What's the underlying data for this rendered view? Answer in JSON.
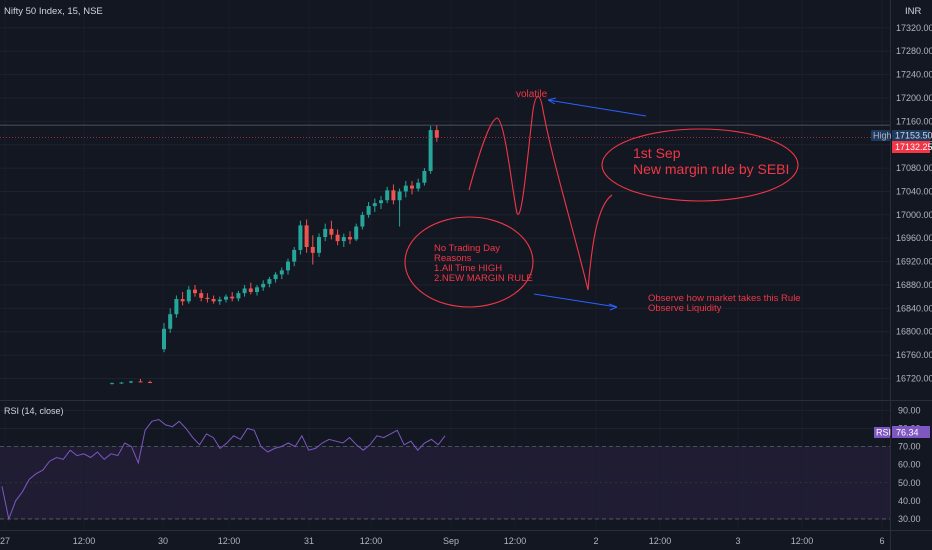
{
  "header": {
    "title": "Nifty 50 Index, 15, NSE",
    "currency": "INR"
  },
  "colors": {
    "up": "#26a69a",
    "down": "#ef5350",
    "annotation": "#f23645",
    "arrow": "#2962ff",
    "rsi": "#7e57c2",
    "high_tag": "#1e3a5f",
    "last_tag": "#f23645"
  },
  "chart_data": {
    "type": "candlestick",
    "price_ylim": [
      16690,
      17330
    ],
    "price_ticks": [
      "17320.00",
      "17280.00",
      "17240.00",
      "17200.00",
      "17160.00",
      "17120.00",
      "17080.00",
      "17040.00",
      "17000.00",
      "16960.00",
      "16920.00",
      "16880.00",
      "16840.00",
      "16800.00",
      "16760.00",
      "16720.00"
    ],
    "high_label": "High",
    "high_value": "17153.50",
    "last_value": "17132.25",
    "high": 17153.5,
    "last": 17132.25,
    "candles": [
      [
        16711,
        16713,
        16710,
        16712
      ],
      [
        16712,
        16714,
        16711,
        16713
      ],
      [
        16713,
        16716,
        16712,
        16715
      ],
      [
        16715,
        16719,
        16713,
        16714
      ],
      [
        16714,
        16716,
        16712,
        16713
      ],
      [
        16770,
        16815,
        16765,
        16805
      ],
      [
        16805,
        16840,
        16798,
        16830
      ],
      [
        16830,
        16862,
        16824,
        16856
      ],
      [
        16856,
        16868,
        16845,
        16852
      ],
      [
        16852,
        16878,
        16848,
        16872
      ],
      [
        16872,
        16880,
        16860,
        16866
      ],
      [
        16866,
        16872,
        16852,
        16858
      ],
      [
        16858,
        16866,
        16850,
        16856
      ],
      [
        16856,
        16862,
        16848,
        16852
      ],
      [
        16852,
        16860,
        16846,
        16855
      ],
      [
        16855,
        16864,
        16850,
        16860
      ],
      [
        16860,
        16868,
        16852,
        16857
      ],
      [
        16857,
        16870,
        16852,
        16866
      ],
      [
        16866,
        16880,
        16860,
        16874
      ],
      [
        16874,
        16884,
        16864,
        16868
      ],
      [
        16868,
        16880,
        16862,
        16876
      ],
      [
        16876,
        16888,
        16870,
        16882
      ],
      [
        16882,
        16894,
        16876,
        16890
      ],
      [
        16890,
        16902,
        16884,
        16898
      ],
      [
        16898,
        16910,
        16890,
        16905
      ],
      [
        16905,
        16925,
        16898,
        16920
      ],
      [
        16920,
        16945,
        16912,
        16940
      ],
      [
        16940,
        16990,
        16932,
        16982
      ],
      [
        16982,
        16992,
        16935,
        16945
      ],
      [
        16945,
        16965,
        16915,
        16935
      ],
      [
        16935,
        16968,
        16928,
        16962
      ],
      [
        16962,
        16985,
        16955,
        16976
      ],
      [
        16976,
        16990,
        16958,
        16966
      ],
      [
        16966,
        16975,
        16948,
        16955
      ],
      [
        16955,
        16968,
        16945,
        16962
      ],
      [
        16962,
        16972,
        16950,
        16958
      ],
      [
        16958,
        16985,
        16955,
        16980
      ],
      [
        16980,
        17005,
        16975,
        17000
      ],
      [
        17000,
        17022,
        16995,
        17015
      ],
      [
        17015,
        17028,
        17005,
        17020
      ],
      [
        17020,
        17032,
        17010,
        17025
      ],
      [
        17025,
        17048,
        17020,
        17042
      ],
      [
        17042,
        17052,
        17018,
        17025
      ],
      [
        17025,
        17045,
        16980,
        17040
      ],
      [
        17040,
        17058,
        17030,
        17050
      ],
      [
        17050,
        17058,
        17035,
        17045
      ],
      [
        17045,
        17062,
        17040,
        17055
      ],
      [
        17055,
        17080,
        17050,
        17075
      ],
      [
        17075,
        17152,
        17070,
        17145
      ],
      [
        17145,
        17153.5,
        17125,
        17132.25
      ]
    ],
    "rsi": {
      "label": "RSI (14, close)",
      "value_label": "76.34",
      "value": 76.34,
      "ylim": [
        25,
        93
      ],
      "ticks": [
        "90.00",
        "80.00",
        "70.00",
        "60.00",
        "50.00",
        "40.00",
        "30.00"
      ],
      "levels": [
        70,
        30
      ],
      "values": [
        48,
        30,
        40,
        45,
        52,
        55,
        57,
        62,
        64,
        63,
        68,
        65,
        66,
        64,
        67,
        63,
        66,
        65,
        72,
        70,
        61,
        79,
        84,
        85,
        82,
        81,
        84,
        80,
        75,
        71,
        77,
        75,
        69,
        72,
        76,
        74,
        80,
        79,
        70,
        67,
        69,
        70,
        72,
        70,
        76,
        68,
        69,
        72,
        74,
        73,
        72,
        75,
        71,
        68,
        71,
        76,
        75,
        77,
        79,
        71,
        73,
        68,
        72,
        74,
        71,
        76
      ]
    },
    "x_ticks": [
      "27",
      "12:00",
      "30",
      "12:00",
      "31",
      "12:00",
      "Sep",
      "12:00",
      "2",
      "12:00",
      "3",
      "12:00",
      "6"
    ]
  },
  "annotations": {
    "volatile": "volatile",
    "note1_line1": "1st Sep",
    "note1_line2": "New margin rule by SEBI",
    "note2_line1": "No Trading Day",
    "note2_line2": "Reasons",
    "note2_line3": "1.All Time HIGH",
    "note2_line4": "2.NEW MARGIN RULE",
    "note3_line1": "Observe how market takes this Rule",
    "note3_line2": "Observe Liquidity"
  }
}
